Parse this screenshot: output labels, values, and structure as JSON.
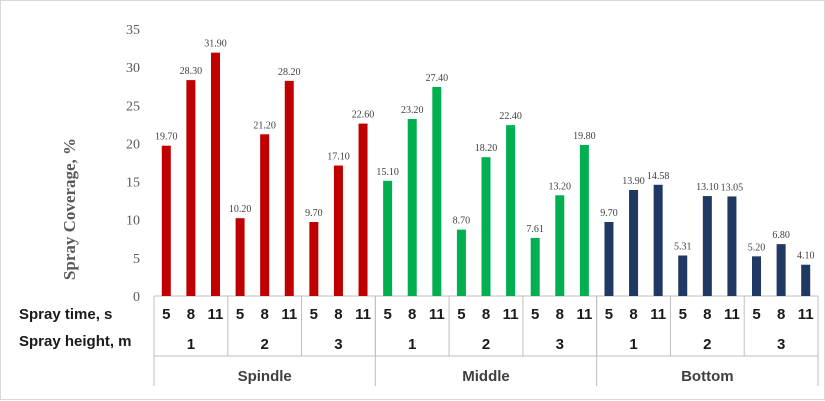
{
  "chart_data": {
    "type": "bar",
    "ylabel": "Spray Coverage, %",
    "ylim": [
      0,
      35
    ],
    "yticks": [
      0,
      5,
      10,
      15,
      20,
      25,
      30,
      35
    ],
    "grid": false,
    "row_labels": {
      "time": "Spray time, s",
      "height": "Spray height, m"
    },
    "groups": [
      {
        "name": "Spindle",
        "color": "#c00000",
        "heights": [
          {
            "label": "1",
            "times": [
              "5",
              "8",
              "11"
            ],
            "values": [
              19.7,
              28.3,
              31.9
            ],
            "labels": [
              "19.70",
              "28.30",
              "31.90"
            ]
          },
          {
            "label": "2",
            "times": [
              "5",
              "8",
              "11"
            ],
            "values": [
              10.2,
              21.2,
              28.2
            ],
            "labels": [
              "10.20",
              "21.20",
              "28.20"
            ]
          },
          {
            "label": "3",
            "times": [
              "5",
              "8",
              "11"
            ],
            "values": [
              9.7,
              17.1,
              22.6
            ],
            "labels": [
              "9.70",
              "17.10",
              "22.60"
            ]
          }
        ]
      },
      {
        "name": "Middle",
        "color": "#00b050",
        "heights": [
          {
            "label": "1",
            "times": [
              "5",
              "8",
              "11"
            ],
            "values": [
              15.1,
              23.2,
              27.4
            ],
            "labels": [
              "15.10",
              "23.20",
              "27.40"
            ]
          },
          {
            "label": "2",
            "times": [
              "5",
              "8",
              "11"
            ],
            "values": [
              8.7,
              18.2,
              22.4
            ],
            "labels": [
              "8.70",
              "18.20",
              "22.40"
            ]
          },
          {
            "label": "3",
            "times": [
              "5",
              "8",
              "11"
            ],
            "values": [
              7.61,
              13.2,
              19.8
            ],
            "labels": [
              "7.61",
              "13.20",
              "19.80"
            ]
          }
        ]
      },
      {
        "name": "Bottom",
        "color": "#1f3864",
        "heights": [
          {
            "label": "1",
            "times": [
              "5",
              "8",
              "11"
            ],
            "values": [
              9.7,
              13.9,
              14.58
            ],
            "labels": [
              "9.70",
              "13.90",
              "14.58"
            ]
          },
          {
            "label": "2",
            "times": [
              "5",
              "8",
              "11"
            ],
            "values": [
              5.31,
              13.1,
              13.05
            ],
            "labels": [
              "5.31",
              "13.10",
              "13.05"
            ]
          },
          {
            "label": "3",
            "times": [
              "5",
              "8",
              "11"
            ],
            "values": [
              5.2,
              6.8,
              4.1
            ],
            "labels": [
              "5.20",
              "6.80",
              "4.10"
            ]
          }
        ]
      }
    ]
  }
}
